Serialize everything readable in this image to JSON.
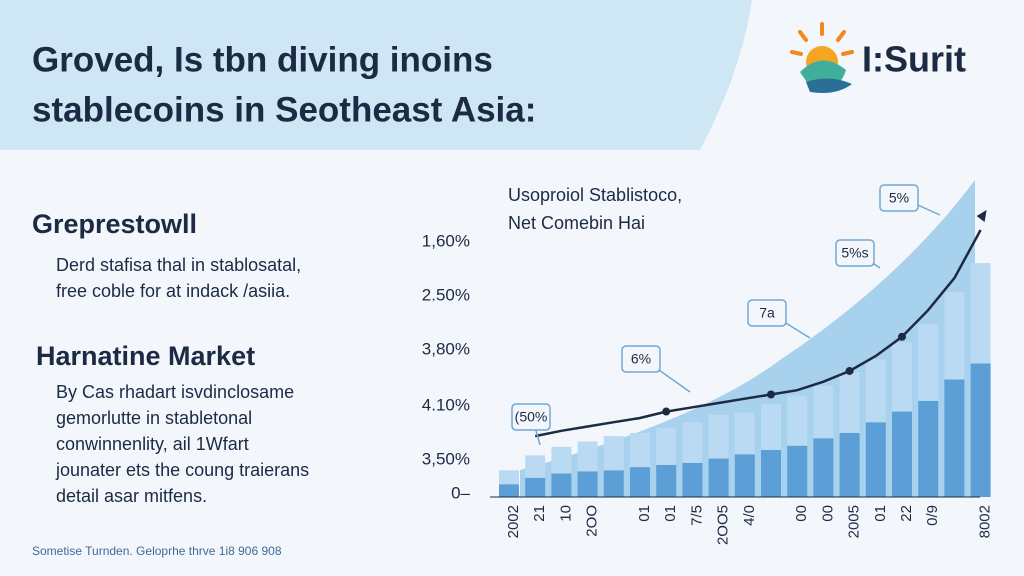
{
  "header": {
    "title": [
      "Groved, Is tbn diving inoins",
      "stablecoins in Seotheast Asia:"
    ],
    "logo": "I:Surit"
  },
  "sections": [
    {
      "heading": "Greprestowll",
      "body": [
        "Derd stafisa thal in stablosatal,",
        "free coble for at indack /asiia."
      ]
    },
    {
      "heading": "Harnatine Market",
      "body": [
        "By Cas rhadart isvdinclosame",
        "gemorlutte in stabletonal",
        "conwinnenlity, ail 1Wfart",
        "jounater ets the coung traierans",
        "detail asar mitfens."
      ]
    }
  ],
  "footer": "Sometise Turnden. Geloprhe thrve 1i8 906 908",
  "chart_data": {
    "type": "bar",
    "stacked": true,
    "title": [
      "Usoproiol Stablistoco,",
      "Net Comebin Hai"
    ],
    "axis_labels": [
      "1,60%",
      "2.50%",
      "3,80%",
      "4.10%",
      "3,50%",
      "0–"
    ],
    "categories": [
      "2002",
      "21",
      "10",
      "2OO",
      null,
      "01",
      "01",
      "7/5",
      "2OO5",
      "4/0",
      null,
      "00",
      "00",
      "2005",
      "01",
      "22",
      "0/9",
      null,
      "8002"
    ],
    "series": [
      {
        "name": "base",
        "color": "#5b9fd6",
        "values": [
          12,
          18,
          22,
          24,
          25,
          28,
          30,
          32,
          36,
          40,
          44,
          48,
          55,
          60,
          70,
          80,
          90,
          110,
          125
        ]
      },
      {
        "name": "top",
        "color": "#b9daf2",
        "values": [
          13,
          21,
          25,
          28,
          32,
          32,
          35,
          38,
          41,
          39,
          43,
          47,
          49,
          57,
          59,
          65,
          72,
          82,
          94
        ]
      },
      {
        "name": "trend",
        "type": "line",
        "color": "#1c2a44",
        "values": [
          null,
          57,
          62,
          66,
          70,
          74,
          80,
          84,
          88,
          92,
          96,
          100,
          108,
          118,
          132,
          150,
          175,
          205,
          250
        ]
      }
    ],
    "annotations": [
      "(50%",
      "6%",
      "7a",
      "5%s",
      "5%"
    ]
  }
}
